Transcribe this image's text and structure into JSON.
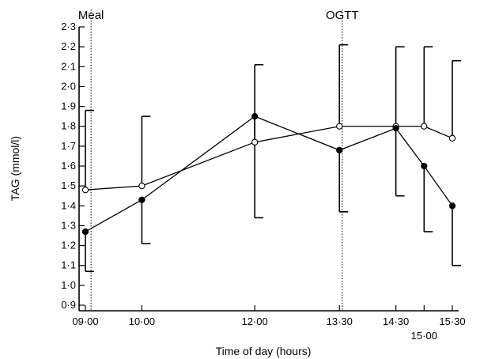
{
  "chart_data": {
    "type": "line",
    "xlabel": "Time of day (hours)",
    "ylabel": "TAG (mmol/l)",
    "ylim": [
      0.9,
      2.3
    ],
    "xlim": [
      9.0,
      15.5
    ],
    "yticks": [
      {
        "value": 0.9,
        "label": "0·9"
      },
      {
        "value": 1.0,
        "label": "1·0"
      },
      {
        "value": 1.1,
        "label": "1·1"
      },
      {
        "value": 1.2,
        "label": "1·2"
      },
      {
        "value": 1.3,
        "label": "1·3"
      },
      {
        "value": 1.4,
        "label": "1·4"
      },
      {
        "value": 1.5,
        "label": "1·5"
      },
      {
        "value": 1.6,
        "label": "1·6"
      },
      {
        "value": 1.7,
        "label": "1·7"
      },
      {
        "value": 1.8,
        "label": "1·8"
      },
      {
        "value": 1.9,
        "label": "1·9"
      },
      {
        "value": 2.0,
        "label": "2·0"
      },
      {
        "value": 2.1,
        "label": "2·1"
      },
      {
        "value": 2.2,
        "label": "2·2"
      },
      {
        "value": 2.3,
        "label": "2·3"
      }
    ],
    "xticks": [
      {
        "value": 9.0,
        "label": "09·00",
        "row": 0
      },
      {
        "value": 10.0,
        "label": "10·00",
        "row": 0
      },
      {
        "value": 12.0,
        "label": "12·00",
        "row": 0
      },
      {
        "value": 13.5,
        "label": "13·30",
        "row": 0
      },
      {
        "value": 14.5,
        "label": "14·30",
        "row": 0
      },
      {
        "value": 15.0,
        "label": "15·00",
        "row": 1
      },
      {
        "value": 15.5,
        "label": "15·30",
        "row": 0
      }
    ],
    "annotations": [
      {
        "label": "Meal",
        "x": 9.1
      },
      {
        "label": "OGTT",
        "x": 13.55
      }
    ],
    "series": [
      {
        "marker": "open-circle",
        "x": [
          9.0,
          10.0,
          12.0,
          13.5,
          14.5,
          15.0,
          15.5
        ],
        "y": [
          1.48,
          1.5,
          1.72,
          1.8,
          1.8,
          1.8,
          1.74
        ],
        "err_upper": [
          1.88,
          1.85,
          2.11,
          2.21,
          2.2,
          2.2,
          2.13
        ],
        "err_lower": [
          null,
          null,
          null,
          null,
          null,
          null,
          null
        ]
      },
      {
        "marker": "filled-circle",
        "x": [
          9.0,
          10.0,
          12.0,
          13.5,
          14.5,
          15.0,
          15.5
        ],
        "y": [
          1.27,
          1.43,
          1.85,
          1.68,
          1.79,
          1.6,
          1.4
        ],
        "err_upper": [
          null,
          null,
          null,
          null,
          null,
          null,
          null
        ],
        "err_lower": [
          1.07,
          1.21,
          1.34,
          1.37,
          1.45,
          1.27,
          1.1
        ]
      }
    ]
  }
}
